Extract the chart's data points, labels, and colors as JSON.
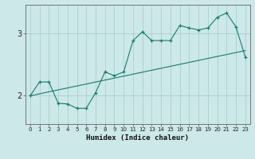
{
  "title": "",
  "xlabel": "Humidex (Indice chaleur)",
  "bg_color": "#cce8e8",
  "line_color": "#1a7a6e",
  "grid_color": "#aacfcf",
  "xlim": [
    -0.5,
    23.5
  ],
  "ylim": [
    1.55,
    3.45
  ],
  "yticks": [
    2,
    3
  ],
  "xticks": [
    0,
    1,
    2,
    3,
    4,
    5,
    6,
    7,
    8,
    9,
    10,
    11,
    12,
    13,
    14,
    15,
    16,
    17,
    18,
    19,
    20,
    21,
    22,
    23
  ],
  "line1_x": [
    0,
    1,
    2,
    3,
    4,
    5,
    6,
    7,
    8,
    9,
    10,
    11,
    12,
    13,
    14,
    15,
    16,
    17,
    18,
    19,
    20,
    21,
    22,
    23
  ],
  "line1_y": [
    2.0,
    2.22,
    2.22,
    1.88,
    1.87,
    1.8,
    1.8,
    2.05,
    2.38,
    2.32,
    2.38,
    2.88,
    3.02,
    2.88,
    2.88,
    2.88,
    3.12,
    3.08,
    3.05,
    3.08,
    3.25,
    3.32,
    3.1,
    2.62
  ],
  "line2_x": [
    0,
    23
  ],
  "line2_y": [
    2.0,
    2.72
  ]
}
